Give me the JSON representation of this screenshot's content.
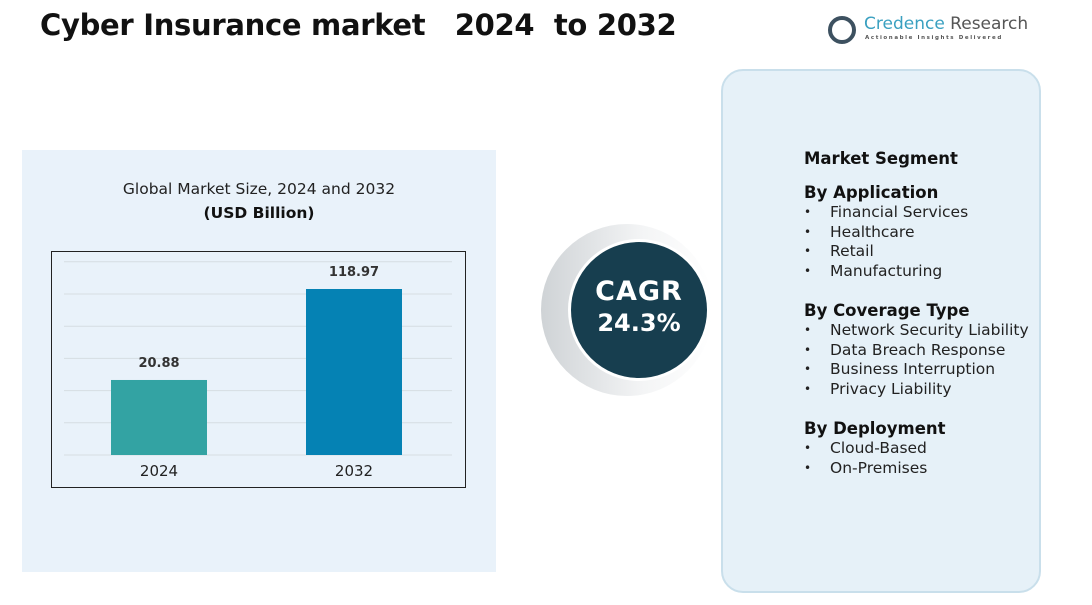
{
  "title": "Cyber Insurance market   2024  to 2032",
  "logo": {
    "name_a": "Credence",
    "name_b": " Research",
    "tagline": "Actionable Insights Delivered"
  },
  "chart_data": {
    "type": "bar",
    "title": "Global Market Size, 2024 and 2032",
    "ylabel": "(USD Billion)",
    "categories": [
      "2024",
      "2032"
    ],
    "values": [
      20.88,
      118.97
    ],
    "value_labels": [
      "20.88",
      "118.97"
    ],
    "colors": [
      "#33a3a3",
      "#0582b4"
    ],
    "ylim": [
      -60,
      148
    ],
    "grid": true
  },
  "cagr": {
    "label": "CAGR",
    "value": "24.3%"
  },
  "segments": {
    "heading": "Market Segment",
    "groups": [
      {
        "title": "By Application",
        "items": [
          "Financial Services",
          "Healthcare",
          "Retail",
          "Manufacturing"
        ]
      },
      {
        "title": "By Coverage Type",
        "items": [
          "Network Security Liability",
          "Data Breach Response",
          "Business Interruption",
          "Privacy Liability"
        ]
      },
      {
        "title": "By Deployment",
        "items": [
          "Cloud-Based",
          "On-Premises"
        ]
      }
    ]
  }
}
